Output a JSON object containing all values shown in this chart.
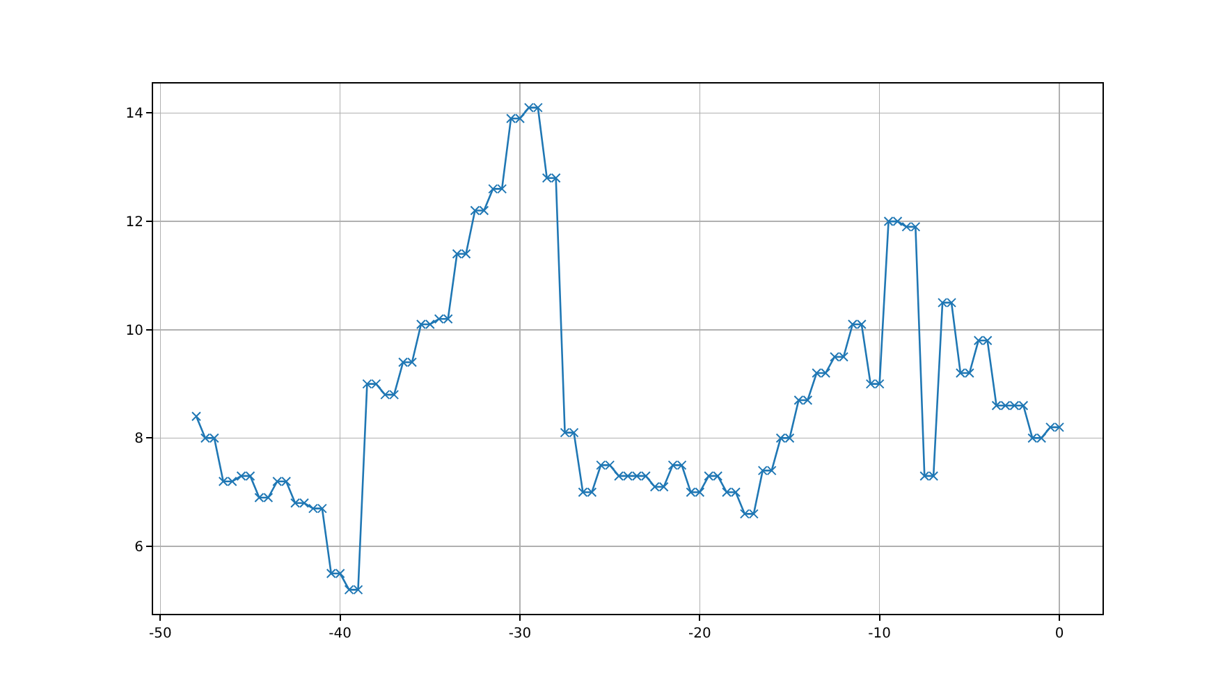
{
  "chart_data": {
    "type": "line",
    "x": [
      -48,
      -47.5,
      -47,
      -46.5,
      -46,
      -45.5,
      -45,
      -44.5,
      -44,
      -43.5,
      -43,
      -42.5,
      -42,
      -41.5,
      -41,
      -40.5,
      -40,
      -39.5,
      -39,
      -38.5,
      -38,
      -37.5,
      -37,
      -36.5,
      -36,
      -35.5,
      -35,
      -34.5,
      -34,
      -33.5,
      -33,
      -32.5,
      -32,
      -31.5,
      -31,
      -30.5,
      -30,
      -29.5,
      -29,
      -28.5,
      -28,
      -27.5,
      -27,
      -26.5,
      -26,
      -25.5,
      -25,
      -24.5,
      -24,
      -23.5,
      -23,
      -22.5,
      -22,
      -21.5,
      -21,
      -20.5,
      -20,
      -19.5,
      -19,
      -18.5,
      -18,
      -17.5,
      -17,
      -16.5,
      -16,
      -15.5,
      -15,
      -14.5,
      -14,
      -13.5,
      -13,
      -12.5,
      -12,
      -11.5,
      -11,
      -10.5,
      -10,
      -9.5,
      -9,
      -8.5,
      -8,
      -7.5,
      -7,
      -6.5,
      -6,
      -5.5,
      -5,
      -4.5,
      -4,
      -3.5,
      -3,
      -2.5,
      -2,
      -1.5,
      -1,
      -0.5,
      0
    ],
    "series": [
      {
        "color": "#1f77b4",
        "values": [
          8.4,
          8.0,
          8.0,
          7.2,
          7.2,
          7.3,
          7.3,
          6.9,
          6.9,
          7.2,
          7.2,
          6.8,
          6.8,
          6.7,
          6.7,
          5.5,
          5.5,
          5.2,
          5.2,
          9.0,
          9.0,
          8.8,
          8.8,
          9.4,
          9.4,
          10.1,
          10.1,
          10.2,
          10.2,
          11.4,
          11.4,
          12.2,
          12.2,
          12.6,
          12.6,
          13.9,
          13.9,
          14.1,
          14.1,
          12.8,
          12.8,
          8.1,
          8.1,
          7.0,
          7.0,
          7.5,
          7.5,
          7.3,
          7.3,
          7.3,
          7.3,
          7.1,
          7.1,
          7.5,
          7.5,
          7.0,
          7.0,
          7.3,
          7.3,
          7.0,
          7.0,
          6.6,
          6.6,
          7.4,
          7.4,
          8.0,
          8.0,
          8.7,
          8.7,
          9.2,
          9.2,
          9.5,
          9.5,
          10.1,
          10.1,
          9.0,
          9.0,
          12.0,
          12.0,
          11.9,
          11.9,
          7.3,
          7.3,
          10.5,
          10.5,
          9.2,
          9.2,
          9.8,
          9.8,
          8.6,
          8.6,
          8.6,
          8.6,
          8.0,
          8.0,
          8.2,
          8.2
        ]
      }
    ],
    "xlim": [
      -50.4,
      2.4
    ],
    "xticks": [
      -50,
      -40,
      -30,
      -20,
      -10,
      0
    ],
    "ylim": [
      4.755,
      14.545
    ],
    "yticks": [
      6,
      8,
      10,
      12,
      14
    ],
    "grid": true,
    "marker": "cross",
    "line_style": "solid"
  }
}
